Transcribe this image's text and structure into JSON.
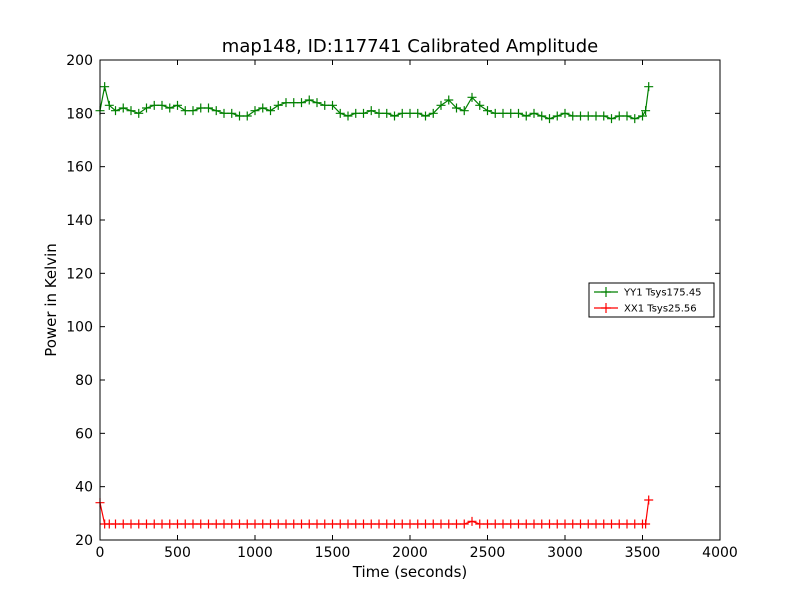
{
  "chart_data": {
    "type": "line",
    "title": "map148, ID:117741 Calibrated Amplitude",
    "xlabel": "Time (seconds)",
    "ylabel": "Power in Kelvin",
    "xlim": [
      0,
      4000
    ],
    "ylim": [
      20,
      200
    ],
    "xticks": [
      0,
      500,
      1000,
      1500,
      2000,
      2500,
      3000,
      3500,
      4000
    ],
    "yticks": [
      20,
      40,
      60,
      80,
      100,
      120,
      140,
      160,
      180,
      200
    ],
    "grid": false,
    "legend_position": "center-right",
    "marker": "plus",
    "series": [
      {
        "name": "YY1 Tsys175.45",
        "color": "#008000",
        "x": [
          0,
          30,
          60,
          100,
          150,
          200,
          250,
          300,
          350,
          400,
          450,
          500,
          550,
          600,
          650,
          700,
          750,
          800,
          850,
          900,
          950,
          1000,
          1050,
          1100,
          1150,
          1200,
          1250,
          1300,
          1350,
          1400,
          1450,
          1500,
          1550,
          1600,
          1650,
          1700,
          1750,
          1800,
          1850,
          1900,
          1950,
          2000,
          2050,
          2100,
          2150,
          2200,
          2250,
          2300,
          2350,
          2400,
          2450,
          2500,
          2550,
          2600,
          2650,
          2700,
          2750,
          2800,
          2850,
          2900,
          2950,
          3000,
          3050,
          3100,
          3150,
          3200,
          3250,
          3300,
          3350,
          3400,
          3450,
          3500,
          3520,
          3540
        ],
        "y": [
          181,
          190,
          183,
          181,
          182,
          181,
          180,
          182,
          183,
          183,
          182,
          183,
          181,
          181,
          182,
          182,
          181,
          180,
          180,
          179,
          179,
          181,
          182,
          181,
          183,
          184,
          184,
          184,
          185,
          184,
          183,
          183,
          180,
          179,
          180,
          180,
          181,
          180,
          180,
          179,
          180,
          180,
          180,
          179,
          180,
          183,
          185,
          182,
          181,
          186,
          183,
          181,
          180,
          180,
          180,
          180,
          179,
          180,
          179,
          178,
          179,
          180,
          179,
          179,
          179,
          179,
          179,
          178,
          179,
          179,
          178,
          179,
          181,
          190
        ]
      },
      {
        "name": "XX1 Tsys25.56",
        "color": "#ff0000",
        "x": [
          0,
          30,
          60,
          100,
          150,
          200,
          250,
          300,
          350,
          400,
          450,
          500,
          550,
          600,
          650,
          700,
          750,
          800,
          850,
          900,
          950,
          1000,
          1050,
          1100,
          1150,
          1200,
          1250,
          1300,
          1350,
          1400,
          1450,
          1500,
          1550,
          1600,
          1650,
          1700,
          1750,
          1800,
          1850,
          1900,
          1950,
          2000,
          2050,
          2100,
          2150,
          2200,
          2250,
          2300,
          2350,
          2400,
          2450,
          2500,
          2550,
          2600,
          2650,
          2700,
          2750,
          2800,
          2850,
          2900,
          2950,
          3000,
          3050,
          3100,
          3150,
          3200,
          3250,
          3300,
          3350,
          3400,
          3450,
          3500,
          3520,
          3540
        ],
        "y": [
          34,
          26,
          26,
          26,
          26,
          26,
          26,
          26,
          26,
          26,
          26,
          26,
          26,
          26,
          26,
          26,
          26,
          26,
          26,
          26,
          26,
          26,
          26,
          26,
          26,
          26,
          26,
          26,
          26,
          26,
          26,
          26,
          26,
          26,
          26,
          26,
          26,
          26,
          26,
          26,
          26,
          26,
          26,
          26,
          26,
          26,
          26,
          26,
          26,
          27,
          26,
          26,
          26,
          26,
          26,
          26,
          26,
          26,
          26,
          26,
          26,
          26,
          26,
          26,
          26,
          26,
          26,
          26,
          26,
          26,
          26,
          26,
          26,
          35
        ]
      }
    ]
  }
}
